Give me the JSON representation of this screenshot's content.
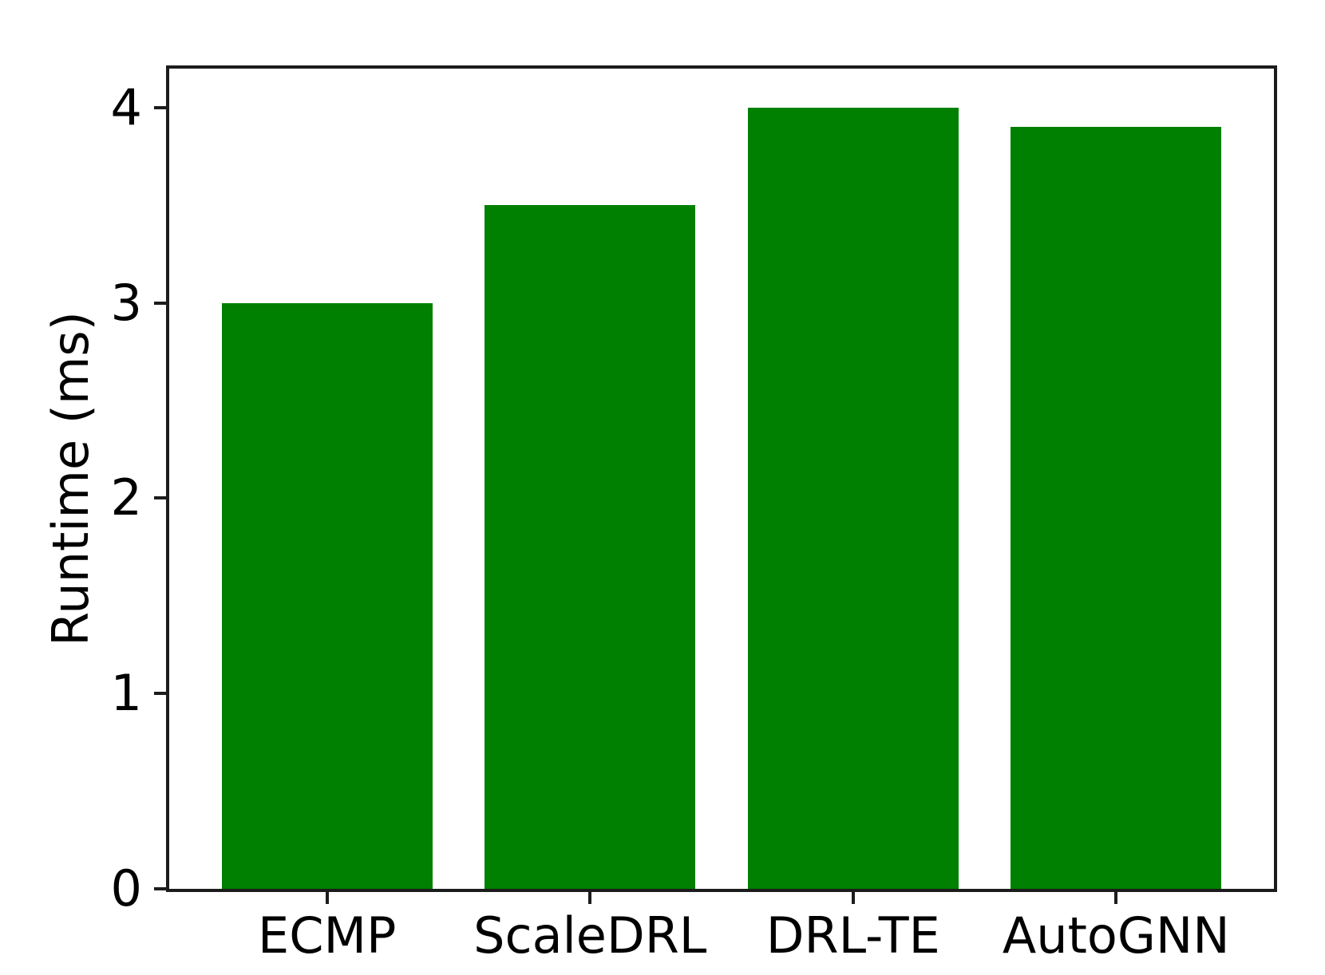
{
  "figure": {
    "background": "#ffffff"
  },
  "chart_data": {
    "type": "bar",
    "title": "",
    "categories": [
      "ECMP",
      "ScaleDRL",
      "DRL-TE",
      "AutoGNN"
    ],
    "values": [
      3.0,
      3.5,
      4.0,
      3.9
    ],
    "xlabel": "",
    "ylabel": "Runtime (ms)",
    "ytick_labels": [
      "0",
      "1",
      "2",
      "3",
      "4"
    ],
    "ytick_values": [
      0,
      1,
      2,
      3,
      4
    ],
    "ylim": [
      0,
      4.2
    ],
    "xlim": [
      -0.6,
      3.6
    ],
    "bar_width": 0.8,
    "bar_color": "#008000",
    "axis_color": "#1c1c1c",
    "text_color": "#000000",
    "grid": false,
    "legend_position": "none"
  }
}
